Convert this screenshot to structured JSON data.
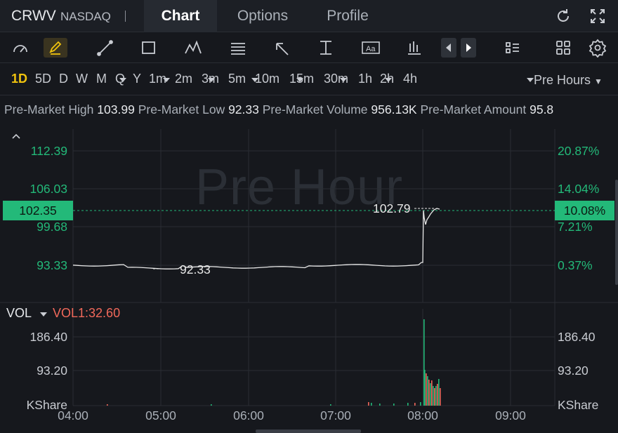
{
  "header": {
    "symbol": "CRWV",
    "exchange": "NASDAQ",
    "tabs": [
      {
        "label": "Chart",
        "active": true
      },
      {
        "label": "Options",
        "active": false
      },
      {
        "label": "Profile",
        "active": false
      }
    ],
    "icons": [
      "refresh-icon",
      "fullscreen-icon"
    ]
  },
  "toolbar": {
    "icons": [
      "indicator-gauge-icon",
      "draw-pencil-icon",
      "trendline-icon",
      "rectangle-icon",
      "pattern-icon",
      "fib-icon",
      "arrow-icon",
      "range-icon",
      "text-icon",
      "bars-icon",
      "step-back-icon",
      "step-forward-icon",
      "list-layout-icon",
      "grid-layout-icon",
      "settings-icon"
    ]
  },
  "timeframes": {
    "items": [
      "1D",
      "5D",
      "D",
      "W",
      "M",
      "Q",
      "Y",
      "1m",
      "2m",
      "3m",
      "5m",
      "10m",
      "15m",
      "30m",
      "1h",
      "2h",
      "4h"
    ],
    "active": "1D",
    "session": "Pre Hours"
  },
  "info": {
    "high_label": "Pre-Market High",
    "high_value": "103.99",
    "low_label": "Pre-Market Low",
    "low_value": "92.33",
    "volume_label": "Pre-Market Volume",
    "volume_value": "956.13K",
    "amount_label": "Pre-Market Amount",
    "amount_value": "95.8"
  },
  "chart": {
    "watermark": "Pre Hour",
    "current_price": "102.35",
    "current_pct": "10.08%",
    "high_marker": "102.79",
    "low_marker": "92.33",
    "price_axis": [
      "112.39",
      "106.03",
      "99.68",
      "93.33"
    ],
    "pct_axis": [
      "20.87%",
      "14.04%",
      "7.21%",
      "0.37%"
    ],
    "time_axis": [
      "04:00",
      "05:00",
      "06:00",
      "07:00",
      "08:00",
      "09:00"
    ],
    "colors": {
      "up": "#23b979",
      "down": "#f0685a",
      "line": "#e8e8e8"
    }
  },
  "volume": {
    "label": "VOL",
    "vol1": "VOL1:32.60",
    "axis": [
      "186.40",
      "93.20"
    ],
    "unit": "KShare"
  }
}
